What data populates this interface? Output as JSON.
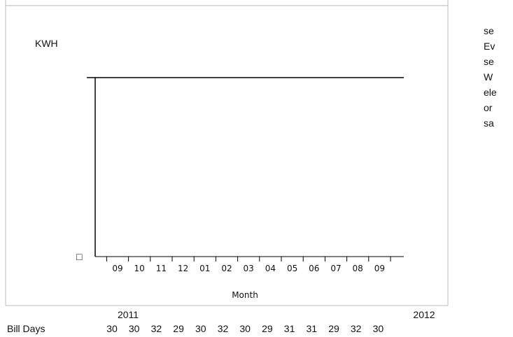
{
  "chart": {
    "y_label": "KWH",
    "y_marker": "□",
    "x_label": "Month",
    "months": [
      "09",
      "10",
      "11",
      "12",
      "01",
      "02",
      "03",
      "04",
      "05",
      "06",
      "07",
      "08",
      "09"
    ],
    "years": [
      "2011",
      "2012"
    ]
  },
  "bill_days": {
    "label": "Bill Days",
    "values": [
      30,
      30,
      32,
      29,
      30,
      32,
      30,
      29,
      31,
      31,
      29,
      32,
      30
    ]
  },
  "side_text": [
    "se",
    "Ev",
    "se",
    "W",
    "ele",
    "or",
    "sa"
  ]
}
